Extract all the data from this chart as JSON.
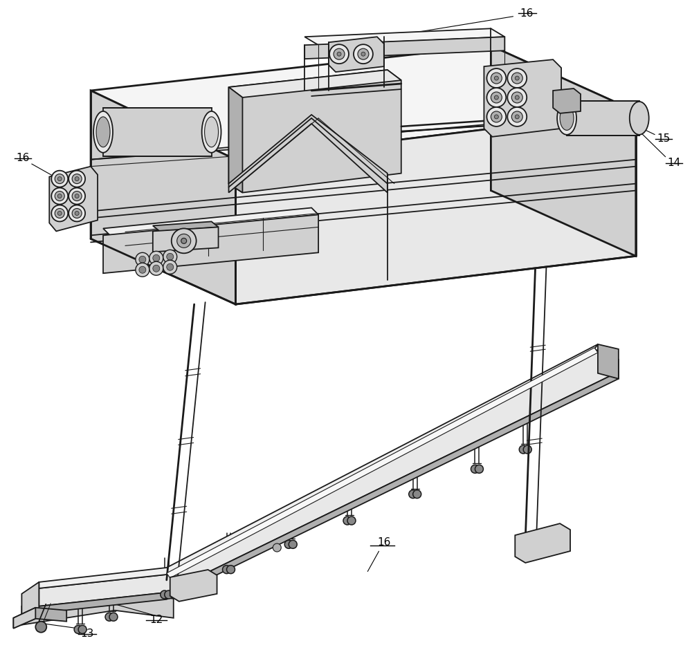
{
  "background_color": "#ffffff",
  "line_color": "#1a1a1a",
  "label_color": "#000000",
  "figsize": [
    10.0,
    9.43
  ],
  "dpi": 100,
  "lw_main": 1.3,
  "lw_thick": 2.0,
  "lw_thin": 0.8,
  "gray_light": "#e8e8e8",
  "gray_mid": "#d0d0d0",
  "gray_dark": "#b0b0b0",
  "gray_darker": "#888888",
  "white": "#ffffff"
}
